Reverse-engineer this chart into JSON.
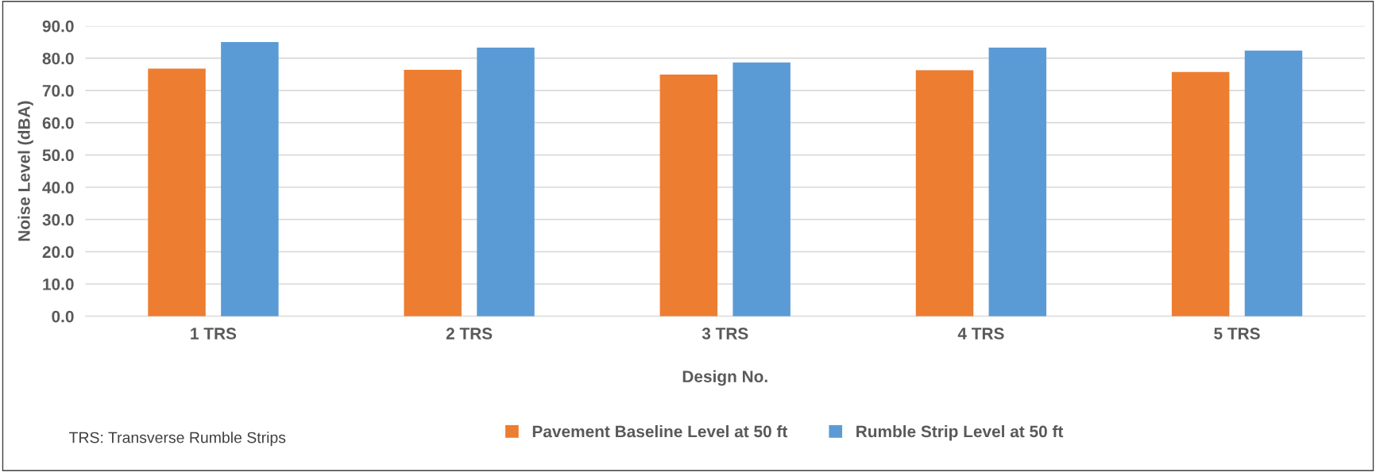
{
  "chart_data": {
    "type": "bar",
    "xlabel": "Design No.",
    "ylabel": "Noise Level (dBA)",
    "categories": [
      "1 TRS",
      "2 TRS",
      "3 TRS",
      "4 TRS",
      "5 TRS"
    ],
    "series": [
      {
        "name": "Pavement Baseline Level at 50 ft",
        "color": "#ed7d31",
        "values": [
          76.8,
          76.4,
          74.9,
          76.3,
          75.7
        ]
      },
      {
        "name": "Rumble Strip Level at 50 ft",
        "color": "#5b9bd5",
        "values": [
          85.0,
          83.3,
          78.7,
          83.3,
          82.4
        ]
      }
    ],
    "ylim": [
      0,
      90
    ],
    "yticks": [
      {
        "value": 0,
        "label": "0.0"
      },
      {
        "value": 10,
        "label": "10.0"
      },
      {
        "value": 20,
        "label": "20.0"
      },
      {
        "value": 30,
        "label": "30.0"
      },
      {
        "value": 40,
        "label": "40.0"
      },
      {
        "value": 50,
        "label": "50.0"
      },
      {
        "value": 60,
        "label": "60.0"
      },
      {
        "value": 70,
        "label": "70.0"
      },
      {
        "value": 80,
        "label": "80.0"
      },
      {
        "value": 90,
        "label": "90.0"
      }
    ],
    "grid": "y",
    "legend": "bottom",
    "annotations": [
      "TRS: Transverse Rumble Strips"
    ]
  }
}
